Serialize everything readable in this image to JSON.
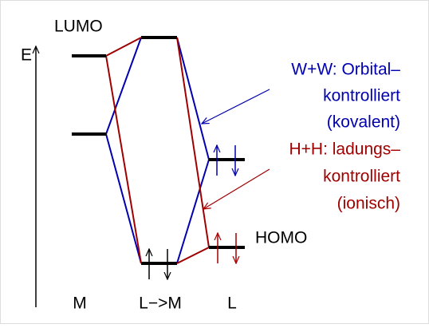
{
  "labels": {
    "lumo": "LUMO",
    "energy": "E",
    "homo": "HOMO"
  },
  "covalent": {
    "lines": [
      "W+W: Orbital–",
      "kontrolliert",
      "(kovalent)"
    ]
  },
  "ionic": {
    "lines": [
      "H+H: ladungs–",
      "kontrolliert",
      "(ionisch)"
    ]
  },
  "columns": [
    "M",
    "L−>M",
    "L"
  ]
}
